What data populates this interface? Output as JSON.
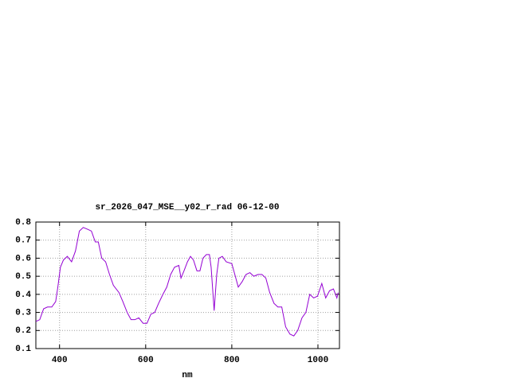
{
  "chart_data": {
    "type": "line",
    "title": "sr_2026_047_MSE__y02_r_rad 06-12-00",
    "x_label": "nm",
    "x": [
      345,
      354,
      363,
      372,
      382,
      391,
      396,
      402,
      409,
      418,
      428,
      437,
      446,
      455,
      465,
      474,
      483,
      490,
      498,
      507,
      516,
      525,
      538,
      547,
      557,
      566,
      575,
      584,
      594,
      603,
      612,
      621,
      630,
      640,
      649,
      658,
      667,
      677,
      682,
      689,
      697,
      704,
      711,
      719,
      726,
      733,
      741,
      748,
      752,
      759,
      765,
      770,
      778,
      787,
      800,
      807,
      815,
      824,
      833,
      842,
      851,
      861,
      870,
      879,
      888,
      898,
      907,
      916,
      925,
      935,
      944,
      953,
      963,
      972,
      981,
      990,
      999,
      1009,
      1018,
      1027,
      1036,
      1044,
      1047
    ],
    "series": [
      {
        "name": "sr_2026_047_MSE__y02_r_rad",
        "color": "#9400d3",
        "values": [
          0.25,
          0.26,
          0.32,
          0.33,
          0.33,
          0.36,
          0.44,
          0.55,
          0.59,
          0.61,
          0.58,
          0.64,
          0.75,
          0.77,
          0.76,
          0.75,
          0.69,
          0.69,
          0.6,
          0.58,
          0.51,
          0.45,
          0.41,
          0.36,
          0.3,
          0.26,
          0.26,
          0.27,
          0.24,
          0.24,
          0.29,
          0.3,
          0.35,
          0.4,
          0.44,
          0.51,
          0.55,
          0.56,
          0.49,
          0.53,
          0.58,
          0.61,
          0.59,
          0.53,
          0.53,
          0.6,
          0.62,
          0.62,
          0.55,
          0.31,
          0.51,
          0.6,
          0.61,
          0.58,
          0.57,
          0.51,
          0.44,
          0.47,
          0.51,
          0.52,
          0.5,
          0.51,
          0.51,
          0.49,
          0.41,
          0.35,
          0.33,
          0.33,
          0.22,
          0.18,
          0.17,
          0.2,
          0.27,
          0.3,
          0.4,
          0.38,
          0.39,
          0.46,
          0.38,
          0.42,
          0.43,
          0.38,
          0.41
        ]
      }
    ],
    "xlim": [
      345,
      1050
    ],
    "xticks": [
      400,
      600,
      800,
      1000
    ],
    "ylim": [
      0.1,
      0.8
    ],
    "yticks": [
      0.1,
      0.2,
      0.3,
      0.4,
      0.5,
      0.6,
      0.7,
      0.8
    ],
    "grid": true,
    "legend": false
  }
}
